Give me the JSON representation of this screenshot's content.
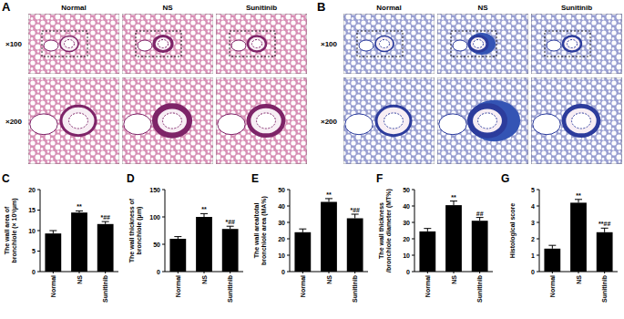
{
  "images": [
    {
      "label": "A",
      "columns": [
        "Normal",
        "NS",
        "Sunitinib"
      ],
      "rows": [
        "×100",
        "×200"
      ]
    },
    {
      "label": "B",
      "columns": [
        "Normal",
        "NS",
        "Sunitinib"
      ],
      "rows": [
        "×100",
        "×200"
      ]
    }
  ],
  "chart_data": [
    {
      "type": "bar",
      "panel": "C",
      "ylabel": "The wall area of bronchiole (× 10³/μm)",
      "categories": [
        "Normal",
        "NS",
        "Sunitinib"
      ],
      "values": [
        9.3,
        14.4,
        11.6
      ],
      "errors": [
        0.7,
        0.4,
        0.6
      ],
      "annotations": [
        null,
        "**",
        "*##"
      ],
      "color": "#000000",
      "ylim": [
        0,
        20
      ],
      "yticks": [
        0,
        5,
        10,
        15,
        20
      ]
    },
    {
      "type": "bar",
      "panel": "D",
      "ylabel": "The wall thickness of bronchiole (μm)",
      "categories": [
        "Normal",
        "NS",
        "Sunitinib"
      ],
      "values": [
        60,
        100,
        78
      ],
      "errors": [
        4,
        6,
        5
      ],
      "annotations": [
        null,
        "**",
        "*##"
      ],
      "color": "#000000",
      "ylim": [
        0,
        150
      ],
      "yticks": [
        0,
        50,
        100,
        150
      ]
    },
    {
      "type": "bar",
      "panel": "E",
      "ylabel": "The wall area/total bronchiole area (MA%)",
      "categories": [
        "Normal",
        "NS",
        "Sunitinib"
      ],
      "values": [
        24,
        42.5,
        32.5
      ],
      "errors": [
        2,
        2,
        2.5
      ],
      "annotations": [
        null,
        "**",
        "*##"
      ],
      "color": "#000000",
      "ylim": [
        0,
        50
      ],
      "yticks": [
        0,
        10,
        20,
        30,
        40,
        50
      ]
    },
    {
      "type": "bar",
      "panel": "F",
      "ylabel": "The wall thickness /bronchiole diameter (MT%)",
      "categories": [
        "Normal",
        "NS",
        "Sunitinib"
      ],
      "values": [
        24.5,
        40.5,
        31
      ],
      "errors": [
        1.8,
        2.5,
        2
      ],
      "annotations": [
        null,
        "**",
        "##"
      ],
      "color": "#000000",
      "ylim": [
        0,
        50
      ],
      "yticks": [
        0,
        10,
        20,
        30,
        40,
        50
      ]
    },
    {
      "type": "bar",
      "panel": "G",
      "ylabel": "Histological score",
      "categories": [
        "Normal",
        "NS",
        "Sunitinib"
      ],
      "values": [
        1.4,
        4.2,
        2.4
      ],
      "errors": [
        0.2,
        0.2,
        0.25
      ],
      "annotations": [
        null,
        "**",
        "**##"
      ],
      "color": "#000000",
      "ylim": [
        0,
        5
      ],
      "yticks": [
        0,
        1,
        2,
        3,
        4,
        5
      ]
    }
  ]
}
